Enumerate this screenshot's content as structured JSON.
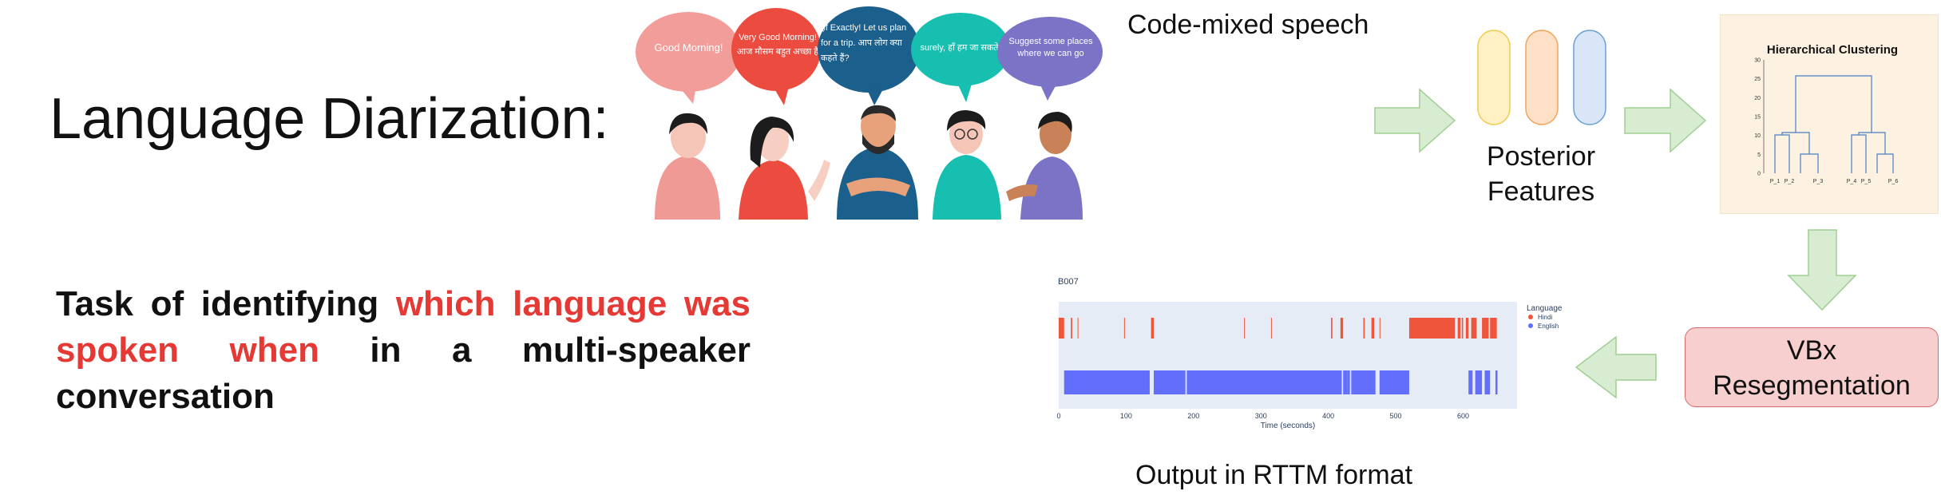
{
  "title": "Language Diarization:",
  "task": {
    "prefix": "Task of identifying ",
    "highlight": "which language was spoken when",
    "suffix": " in a multi-speaker conversation"
  },
  "speech_bubbles": [
    {
      "text": "Good Morning!",
      "color": "#f29d9a"
    },
    {
      "text": "Very Good Morning! आज मौसम बहुत अच्छा है",
      "color": "#ec4c3f"
    },
    {
      "text": "हाँ Exactly! Let us plan for a trip. आप लोग क्या कहते हैं?",
      "color": "#1b5f8c"
    },
    {
      "text": "surely, हाँ हम जा सकते हैं",
      "color": "#16bfb0"
    },
    {
      "text": "Suggest some places where we can go",
      "color": "#7b74c6"
    }
  ],
  "code_mixed_label": "Code-mixed speech",
  "posterior_label": "Posterior Features",
  "posterior_colors": [
    "#fff1c4",
    "#fde0c5",
    "#d9e6f7"
  ],
  "clustering": {
    "title": "Hierarchical Clustering",
    "yticks": [
      "0",
      "5",
      "10",
      "15",
      "20",
      "25",
      "30"
    ],
    "leaves": [
      "P_1",
      "P_2",
      "P_3",
      "P_4",
      "P_5",
      "P_6"
    ]
  },
  "vbx_label": "VBx Resegmentation",
  "output_label": "Output in RTTM format",
  "chart_data": {
    "type": "bar",
    "title": "B007",
    "xlabel": "Time (seconds)",
    "ylabel": "",
    "xlim": [
      0,
      680
    ],
    "xticks": [
      "0",
      "100",
      "200",
      "300",
      "400",
      "500",
      "600"
    ],
    "legend_title": "Language",
    "legend_position": "top-right",
    "series": [
      {
        "name": "Hindi",
        "color": "#ef553b",
        "segments": [
          [
            0,
            8
          ],
          [
            18,
            20
          ],
          [
            28,
            29
          ],
          [
            97,
            98
          ],
          [
            137,
            141
          ],
          [
            275,
            276
          ],
          [
            315,
            316
          ],
          [
            404,
            406
          ],
          [
            418,
            422
          ],
          [
            452,
            454
          ],
          [
            464,
            468
          ],
          [
            476,
            477
          ],
          [
            520,
            588
          ],
          [
            592,
            596
          ],
          [
            598,
            600
          ],
          [
            604,
            608
          ],
          [
            612,
            620
          ],
          [
            628,
            638
          ],
          [
            640,
            650
          ]
        ]
      },
      {
        "name": "English",
        "color": "#636efa",
        "segments": [
          [
            8,
            135
          ],
          [
            141,
            188
          ],
          [
            190,
            420
          ],
          [
            422,
            428
          ],
          [
            428,
            432
          ],
          [
            434,
            462
          ],
          [
            462,
            470
          ],
          [
            476,
            520
          ],
          [
            608,
            614
          ],
          [
            618,
            628
          ],
          [
            632,
            640
          ],
          [
            648,
            651
          ]
        ]
      }
    ]
  }
}
